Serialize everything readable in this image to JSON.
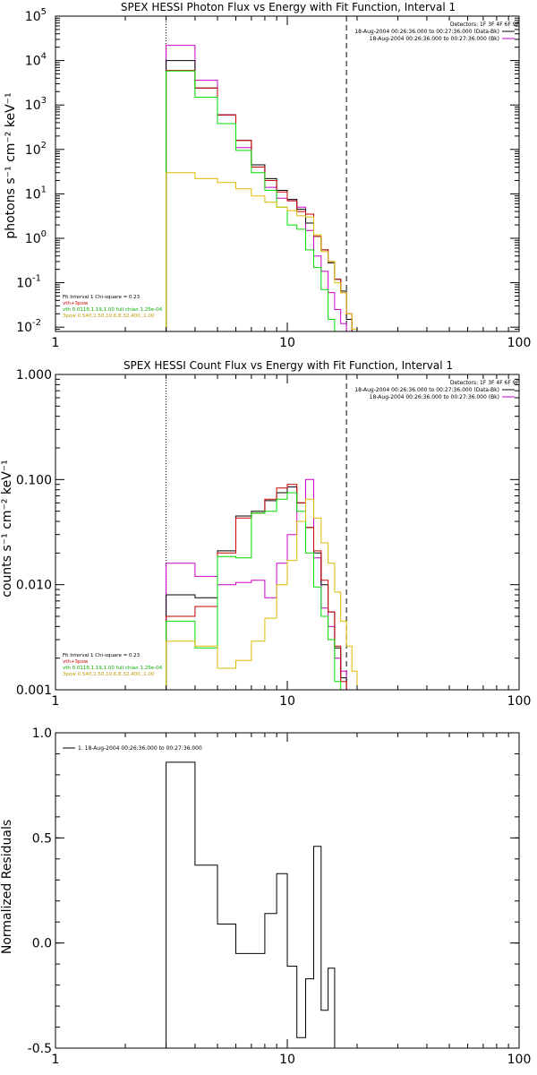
{
  "chart_data": [
    {
      "type": "line",
      "title": "SPEX HESSI Photon Flux vs Energy with Fit Function, Interval 1",
      "ylabel": "photons s⁻¹ cm⁻² keV⁻¹",
      "xlabel": "",
      "xscale": "log",
      "yscale": "log",
      "xlim": [
        1,
        100
      ],
      "ylim": [
        0.008,
        100000
      ],
      "xticks": [
        {
          "v": 1,
          "label": "1"
        },
        {
          "v": 10,
          "label": "10"
        },
        {
          "v": 100,
          "label": "100"
        }
      ],
      "yticks": [
        {
          "v": 0.01,
          "base": "10",
          "exp": "-2"
        },
        {
          "v": 0.1,
          "base": "10",
          "exp": "-1"
        },
        {
          "v": 1,
          "base": "10",
          "exp": "0"
        },
        {
          "v": 10,
          "base": "10",
          "exp": "1"
        },
        {
          "v": 100,
          "base": "10",
          "exp": "2"
        },
        {
          "v": 1000,
          "base": "10",
          "exp": "3"
        },
        {
          "v": 10000,
          "base": "10",
          "exp": "4"
        },
        {
          "v": 100000,
          "base": "10",
          "exp": "5"
        }
      ],
      "vlines": [
        {
          "x": 3,
          "style": "dotted"
        },
        {
          "x": 18,
          "style": "dashed"
        }
      ],
      "edges": [
        3,
        4,
        5,
        6,
        7,
        8,
        9,
        10,
        11,
        12,
        13,
        14,
        15,
        16,
        17,
        18,
        19,
        20,
        21,
        22,
        23
      ],
      "series": [
        {
          "color": "#cc00cc",
          "values": [
            22000,
            3600,
            600,
            110,
            45,
            14,
            8,
            7,
            5,
            1.5,
            0.4,
            0.18,
            0.06,
            0.025,
            0.012,
            null,
            null,
            null,
            null,
            null
          ]
        },
        {
          "color": "#000000",
          "values": [
            10000,
            2400,
            600,
            160,
            45,
            22,
            12,
            7.5,
            4.5,
            2.2,
            1.1,
            0.55,
            0.28,
            0.12,
            0.065,
            0.015,
            0.008,
            null,
            null,
            null
          ]
        },
        {
          "color": "#cc0000",
          "values": [
            6000,
            2400,
            600,
            160,
            40,
            20,
            11,
            7,
            4,
            3.5,
            1.1,
            0.55,
            0.3,
            0.12,
            0.06,
            0.02,
            0.008,
            null,
            null,
            null
          ]
        },
        {
          "color": "#00dd00",
          "values": [
            5800,
            1500,
            380,
            95,
            30,
            12,
            5,
            2,
            1.6,
            0.55,
            0.22,
            0.07,
            0.015,
            0.004,
            null,
            null,
            null,
            null,
            null,
            null
          ]
        },
        {
          "color": "#ddbb00",
          "values": [
            30,
            22,
            18,
            13,
            9,
            6.5,
            5,
            4.2,
            3.2,
            3,
            1.2,
            0.5,
            0.3,
            0.1,
            0.06,
            0.02,
            0.009,
            null,
            null,
            null
          ]
        }
      ],
      "header_text": [
        "Detectors: 1F 3F 4F 6F 9F",
        "18-Aug-2004 00:26:36.000 to 00:27:36.000 (Data-Bk)",
        "18-Aug-2004 00:26:36.000 to 00:27:36.000 (Bk)"
      ],
      "header_colors": [
        "#000000",
        "#cc00cc"
      ],
      "fit_text": [
        {
          "text": "Fit Interval  1    Chi-square = 0.23",
          "color": ""
        },
        {
          "text": "vth+3pow",
          "color": "#cc0000"
        },
        {
          "text": "vth 0.0116,1.19,1.00  full chian 1.25e-04",
          "color": "#00dd00"
        },
        {
          "text": "3pow 0.540,1.50,10.6,8.32,400.,1.00",
          "color": "#ddbb00"
        }
      ]
    },
    {
      "type": "line",
      "title": "SPEX HESSI Count Flux vs Energy with Fit Function, Interval 1",
      "ylabel": "counts s⁻¹ cm⁻² keV⁻¹",
      "xlabel": "",
      "xscale": "log",
      "yscale": "log",
      "xlim": [
        1,
        100
      ],
      "ylim": [
        0.001,
        1.0
      ],
      "xticks": [
        {
          "v": 1,
          "label": "1"
        },
        {
          "v": 10,
          "label": "10"
        },
        {
          "v": 100,
          "label": "100"
        }
      ],
      "yticks": [
        {
          "v": 0.001,
          "base": "0.001",
          "exp": ""
        },
        {
          "v": 0.01,
          "base": "0.010",
          "exp": ""
        },
        {
          "v": 0.1,
          "base": "0.100",
          "exp": ""
        },
        {
          "v": 1.0,
          "base": "1.000",
          "exp": ""
        }
      ],
      "vlines": [
        {
          "x": 3,
          "style": "dotted"
        },
        {
          "x": 18,
          "style": "dashed"
        }
      ],
      "edges": [
        3,
        4,
        5,
        6,
        7,
        8,
        9,
        10,
        11,
        12,
        13,
        14,
        15,
        16,
        17,
        18,
        19,
        20,
        21,
        22,
        23
      ],
      "series": [
        {
          "color": "#cc00cc",
          "values": [
            0.016,
            0.012,
            0.01,
            0.0105,
            0.011,
            0.0075,
            0.016,
            0.03,
            0.06,
            0.1,
            0.018,
            0.006,
            0.004,
            0.002,
            0.0015,
            0.001,
            null,
            null,
            null,
            null
          ]
        },
        {
          "color": "#000000",
          "values": [
            0.008,
            0.0075,
            0.021,
            0.045,
            0.05,
            0.063,
            0.075,
            0.085,
            0.06,
            0.035,
            0.02,
            0.01,
            0.0055,
            0.0025,
            0.0013,
            0.001,
            null,
            null,
            null,
            null
          ]
        },
        {
          "color": "#cc0000",
          "values": [
            0.005,
            0.0062,
            0.02,
            0.043,
            0.048,
            0.065,
            0.083,
            0.09,
            0.06,
            0.035,
            0.021,
            0.011,
            0.0055,
            0.0026,
            0.0012,
            0.001,
            null,
            null,
            null,
            null
          ]
        },
        {
          "color": "#00dd00",
          "values": [
            0.0045,
            0.0025,
            0.0185,
            0.018,
            0.048,
            0.05,
            0.065,
            0.075,
            0.05,
            0.02,
            0.0095,
            0.005,
            0.003,
            0.0012,
            0.0009,
            null,
            null,
            null,
            null,
            null
          ]
        },
        {
          "color": "#ddbb00",
          "values": [
            0.0029,
            0.0026,
            0.0016,
            0.0019,
            0.0029,
            0.0048,
            0.01,
            0.017,
            0.04,
            0.065,
            0.043,
            0.025,
            0.016,
            0.0085,
            0.0045,
            0.0026,
            0.0015,
            0.001,
            null,
            null
          ]
        }
      ],
      "header_text": [
        "Detectors: 1F 3F 4F 6F 9F",
        "18-Aug-2004 00:26:36.000 to 00:27:36.000 (Data-Bk)",
        "18-Aug-2004 00:26:36.000 to 00:27:36.000 (Bk)"
      ],
      "header_colors": [
        "#000000",
        "#cc00cc"
      ],
      "fit_text": [
        {
          "text": "Fit Interval  1    Chi-square = 0.23",
          "color": ""
        },
        {
          "text": "vth+3pow",
          "color": "#cc0000"
        },
        {
          "text": "vth 0.0116,1.19,1.00  full chian 1.25e-04",
          "color": "#00dd00"
        },
        {
          "text": "3pow 0.540,1.50,10.6,8.32,400.,1.00",
          "color": "#ddbb00"
        }
      ]
    },
    {
      "type": "line",
      "title": "",
      "ylabel": "Normalized Residuals",
      "xlabel": "",
      "xscale": "log",
      "yscale": "linear",
      "xlim": [
        1,
        100
      ],
      "ylim": [
        -0.5,
        1.0
      ],
      "xticks": [
        {
          "v": 1,
          "label": "1"
        },
        {
          "v": 10,
          "label": "10"
        },
        {
          "v": 100,
          "label": "100"
        }
      ],
      "yticks": [
        {
          "v": -0.5,
          "base": "-0.5",
          "exp": ""
        },
        {
          "v": 0.0,
          "base": "0.0",
          "exp": ""
        },
        {
          "v": 0.5,
          "base": "0.5",
          "exp": ""
        },
        {
          "v": 1.0,
          "base": "1.0",
          "exp": ""
        }
      ],
      "vlines": [],
      "edges": [
        3,
        4,
        5,
        6,
        7,
        8,
        9,
        10,
        11,
        12,
        13,
        14,
        15,
        16,
        17,
        18
      ],
      "series": [
        {
          "color": "#000000",
          "values": [
            0.86,
            0.37,
            0.09,
            -0.05,
            -0.05,
            0.14,
            0.33,
            -0.11,
            -0.45,
            -0.17,
            0.46,
            -0.32,
            -0.12,
            null,
            null
          ]
        }
      ],
      "legend_text": "1. 18-Aug-2004 00:26:36.000 to 00:27:36.000"
    }
  ]
}
